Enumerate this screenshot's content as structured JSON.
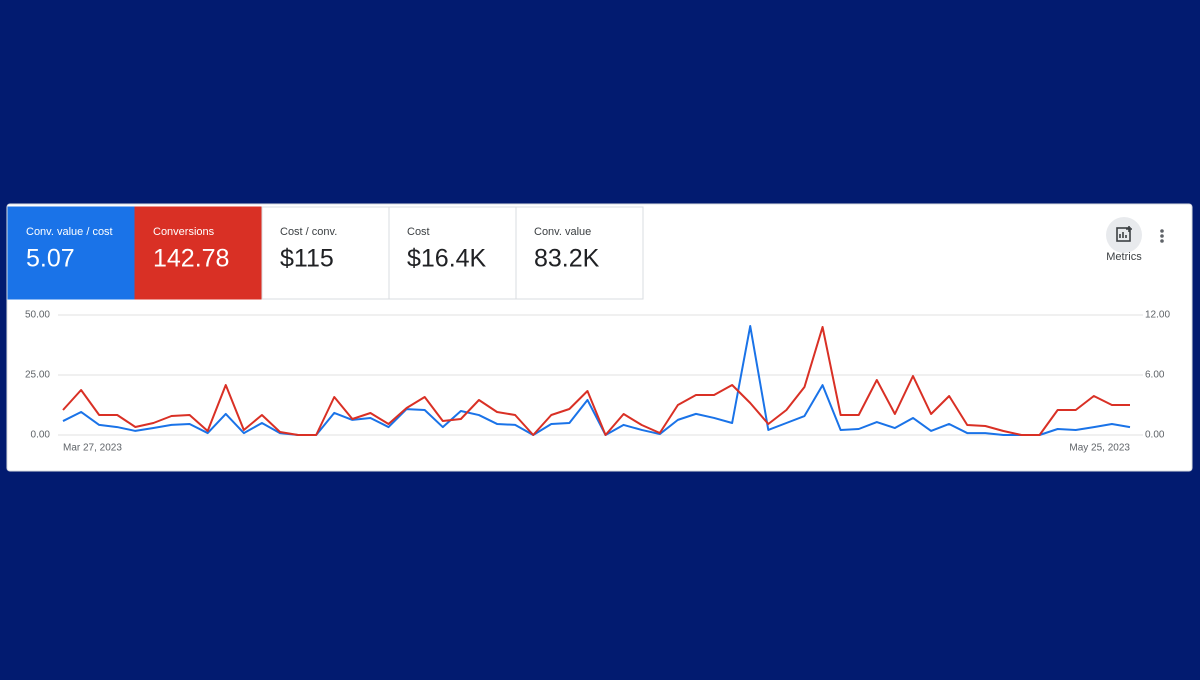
{
  "metrics": [
    {
      "label": "Conv. value / cost",
      "value": 5.07
    },
    {
      "label": "Conversions",
      "value": 142.78
    },
    {
      "label": "Cost / conv.",
      "value": 115,
      "value_label": "$115"
    },
    {
      "label": "Cost",
      "value": 16400,
      "value_label": "$16.4K"
    },
    {
      "label": "Conv. value",
      "value": 83200,
      "value_label": "83.2K"
    }
  ],
  "metrics_button": "Metrics",
  "chart_data": {
    "type": "line",
    "categories": [
      "Mar 27, 2023",
      null,
      null,
      null,
      null,
      null,
      null,
      null,
      null,
      null,
      null,
      null,
      null,
      null,
      null,
      null,
      null,
      null,
      null,
      null,
      null,
      null,
      null,
      null,
      null,
      null,
      null,
      null,
      null,
      null,
      null,
      null,
      null,
      null,
      null,
      null,
      null,
      null,
      null,
      null,
      null,
      null,
      null,
      null,
      null,
      null,
      null,
      null,
      null,
      null,
      null,
      null,
      null,
      null,
      null,
      null,
      null,
      null,
      null,
      "May 25, 2023"
    ],
    "ylim": [
      0,
      50
    ],
    "yticks": [
      {
        "value": 0,
        "label": "0.00"
      },
      {
        "value": 25,
        "label": "25.00"
      },
      {
        "value": 50,
        "label": "50.00"
      }
    ],
    "y2lim": [
      0,
      12
    ],
    "y2ticks": [
      {
        "value": 0,
        "label": "0.00"
      },
      {
        "value": 6,
        "label": "6.00"
      },
      {
        "value": 12,
        "label": "12.00"
      }
    ],
    "grid": true,
    "series": [
      {
        "color": "#1a73e8",
        "axis": "y",
        "values": [
          5.8,
          9.6,
          4.2,
          3.3,
          1.7,
          2.9,
          4.2,
          4.6,
          0.8,
          8.8,
          0.8,
          5.0,
          0.8,
          0,
          0,
          9.2,
          6.3,
          7.1,
          3.3,
          10.8,
          10.4,
          3.3,
          10.0,
          8.3,
          4.6,
          4.2,
          0,
          4.6,
          5.0,
          14.6,
          0,
          4.2,
          2.1,
          0.4,
          6.3,
          8.8,
          7.1,
          5.0,
          45.4,
          2.1,
          5.0,
          7.9,
          20.8,
          2.1,
          2.5,
          5.4,
          2.9,
          7.1,
          1.7,
          4.6,
          0.8,
          0.8,
          0,
          0,
          0,
          2.5,
          2.1,
          3.3,
          4.6,
          3.3
        ]
      },
      {
        "color": "#d93025",
        "axis": "y2",
        "values": [
          2.5,
          4.5,
          2.0,
          2.0,
          0.8,
          1.2,
          1.9,
          2.0,
          0.4,
          5.0,
          0.5,
          2.0,
          0.3,
          0,
          0,
          3.8,
          1.6,
          2.2,
          1.1,
          2.7,
          3.8,
          1.4,
          1.6,
          3.5,
          2.3,
          2.0,
          0,
          2.0,
          2.6,
          4.4,
          0,
          2.1,
          1.0,
          0.2,
          3.0,
          4.0,
          4.0,
          5.0,
          3.2,
          1.1,
          2.5,
          4.8,
          10.8,
          2.0,
          2.0,
          5.5,
          2.1,
          5.9,
          2.1,
          3.9,
          1.0,
          0.9,
          0.4,
          0,
          0,
          2.5,
          2.5,
          3.9,
          3.0,
          3.0
        ]
      }
    ]
  }
}
